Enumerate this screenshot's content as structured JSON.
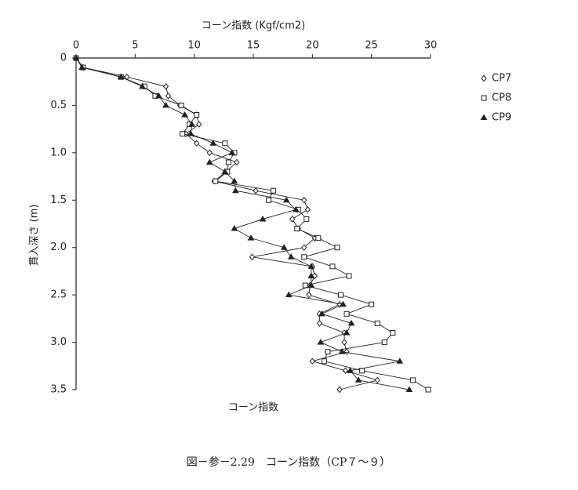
{
  "chart_data": {
    "type": "line",
    "title": "コーン指数 (Kgf/cm2)",
    "y_label": "貫入深さ (m)",
    "x_label_bottom": "コーン指数",
    "caption": "図－参－2.29　コーン指数（CP７～９）",
    "y": [
      0,
      0.1,
      0.2,
      0.3,
      0.4,
      0.5,
      0.6,
      0.7,
      0.8,
      0.9,
      1.0,
      1.1,
      1.2,
      1.3,
      1.4,
      1.5,
      1.6,
      1.7,
      1.8,
      1.9,
      2.0,
      2.1,
      2.2,
      2.3,
      2.4,
      2.5,
      2.6,
      2.7,
      2.8,
      2.9,
      3.0,
      3.1,
      3.2,
      3.3,
      3.4,
      3.5
    ],
    "series": [
      {
        "name": "CP7",
        "marker": "diamond",
        "color": "#222222",
        "values": [
          0,
          0.6,
          4.3,
          7.6,
          7.8,
          8.8,
          10.2,
          10.4,
          9.3,
          10.2,
          11.3,
          13.6,
          12.7,
          11.7,
          15.2,
          19.3,
          19.6,
          18.3,
          18.8,
          20.2,
          19.3,
          14.9,
          20.0,
          20.2,
          19.8,
          19.7,
          22.3,
          20.6,
          20.6,
          22.7,
          22.7,
          22.9,
          20.0,
          22.8,
          25.5,
          22.3
        ]
      },
      {
        "name": "CP8",
        "marker": "square",
        "color": "#222222",
        "values": [
          0,
          0.6,
          3.8,
          5.8,
          6.7,
          8.9,
          10.2,
          9.6,
          9.0,
          12.6,
          13.4,
          12.9,
          12.8,
          11.8,
          16.7,
          16.3,
          18.8,
          19.5,
          18.7,
          20.5,
          22.1,
          19.3,
          21.7,
          23.1,
          19.4,
          22.4,
          25.0,
          22.9,
          25.5,
          26.8,
          26.1,
          21.3,
          21.0,
          24.2,
          28.5,
          29.8
        ]
      },
      {
        "name": "CP9",
        "marker": "triangle",
        "color": "#222222",
        "values": [
          0,
          0.5,
          3.8,
          5.6,
          7.0,
          7.6,
          9.2,
          9.8,
          9.7,
          11.6,
          13.2,
          11.3,
          12.6,
          13.4,
          13.5,
          17.8,
          18.6,
          15.8,
          13.4,
          14.8,
          17.6,
          18.2,
          19.9,
          19.9,
          19.9,
          18.0,
          22.6,
          20.8,
          23.3,
          22.9,
          20.7,
          22.5,
          27.4,
          23.2,
          23.9,
          28.2
        ]
      }
    ],
    "xlim": [
      0,
      30
    ],
    "xticks": [
      0,
      5,
      10,
      15,
      20,
      25,
      30
    ],
    "ylim": [
      0,
      3.5
    ],
    "y_inverted": true,
    "yticks": [
      0,
      0.5,
      {
        "value": 1,
        "label": "1.0"
      },
      1.5,
      {
        "value": 2,
        "label": "2.0"
      },
      2.5,
      {
        "value": 3,
        "label": "3.0"
      },
      3.5
    ],
    "legend": "top-right"
  }
}
